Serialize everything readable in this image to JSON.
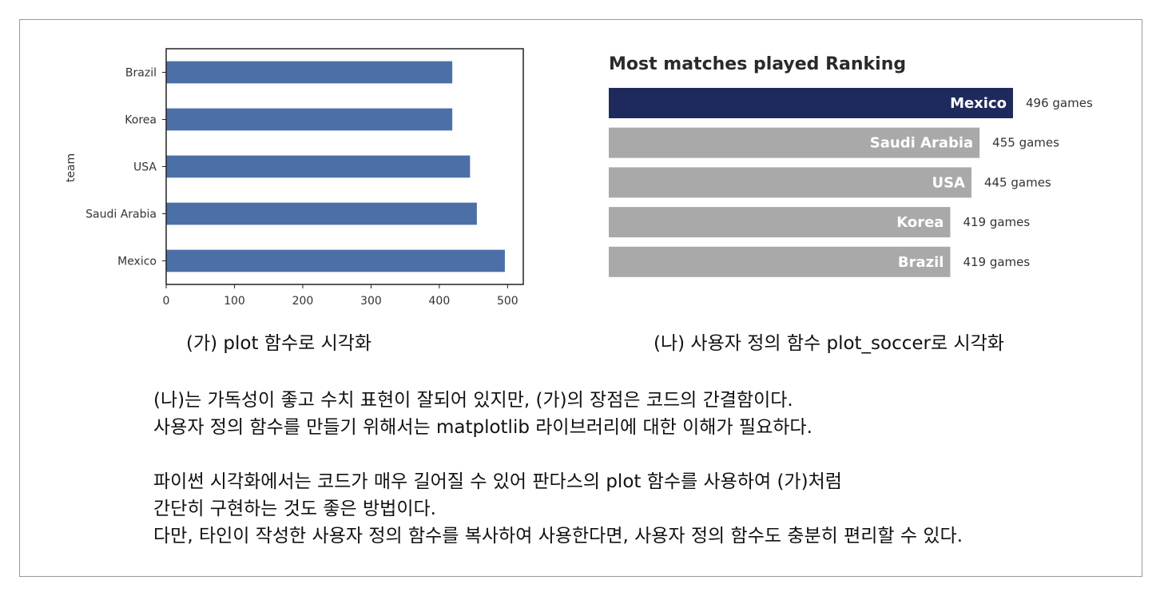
{
  "chart_data": [
    {
      "type": "bar",
      "orientation": "horizontal",
      "categories": [
        "Brazil",
        "Korea",
        "USA",
        "Saudi Arabia",
        "Mexico"
      ],
      "values": [
        419,
        419,
        445,
        455,
        496
      ],
      "ylabel": "team",
      "xlim": [
        0,
        523
      ],
      "xticks": [
        0,
        100,
        200,
        300,
        400,
        500
      ],
      "bar_color": "#4c6fa8"
    },
    {
      "type": "bar",
      "orientation": "horizontal",
      "title": "Most matches played Ranking",
      "categories": [
        "Mexico",
        "Saudi Arabia",
        "USA",
        "Korea",
        "Brazil"
      ],
      "values": [
        496,
        455,
        445,
        419,
        419
      ],
      "value_labels": [
        "496 games",
        "455 games",
        "445 games",
        "419 games",
        "419 games"
      ],
      "highlight_color": "#1f2a5c",
      "default_color": "#a9a9a9"
    }
  ],
  "captions": {
    "left": "(가) plot 함수로 시각화",
    "right": "(나) 사용자 정의 함수 plot_soccer로 시각화"
  },
  "paragraphs": [
    [
      "(나)는 가독성이 좋고 수치 표현이 잘되어 있지만, (가)의 장점은 코드의 간결함이다.",
      "사용자 정의 함수를 만들기 위해서는 matplotlib 라이브러리에 대한 이해가 필요하다."
    ],
    [
      "파이썬 시각화에서는 코드가 매우 길어질 수 있어 판다스의 plot 함수를 사용하여 (가)처럼",
      "간단히 구현하는 것도 좋은 방법이다.",
      "다만, 타인이 작성한 사용자 정의 함수를 복사하여 사용한다면, 사용자 정의 함수도 충분히 편리할 수 있다."
    ]
  ]
}
